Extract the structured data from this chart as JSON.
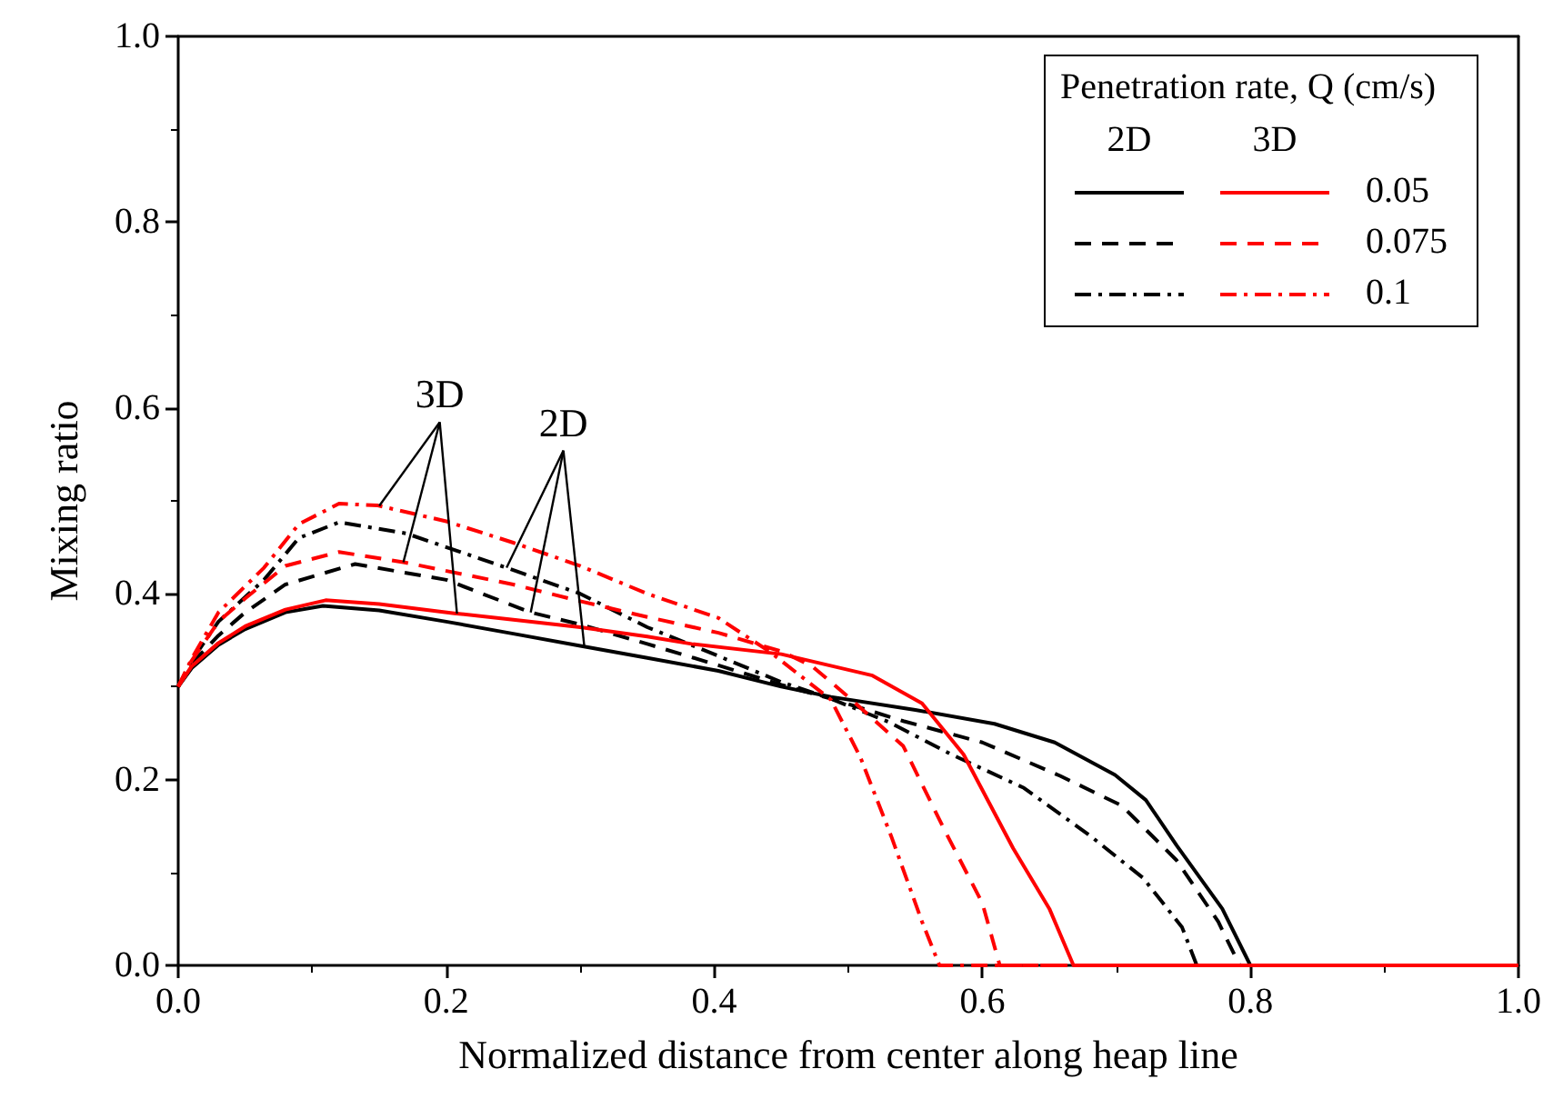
{
  "chart_data": {
    "type": "line",
    "xlabel": "Normalized distance from center along heap line",
    "ylabel": "Mixing ratio",
    "legend_title": "Penetration rate, Q (cm/s)",
    "legend": "top right",
    "grid": false,
    "marker": "none",
    "xlim": [
      0,
      1
    ],
    "ylim": [
      0,
      1
    ],
    "xticks": [
      {
        "value": 0,
        "label": "0.0"
      },
      {
        "value": 0.2,
        "label": "0.2"
      },
      {
        "value": 0.4,
        "label": "0.4"
      },
      {
        "value": 0.6,
        "label": "0.6"
      },
      {
        "value": 0.8,
        "label": "0.8"
      },
      {
        "value": 1,
        "label": "1.0"
      }
    ],
    "yticks": [
      {
        "value": 0,
        "label": "0.0"
      },
      {
        "value": 0.2,
        "label": "0.2"
      },
      {
        "value": 0.4,
        "label": "0.4"
      },
      {
        "value": 0.6,
        "label": "0.6"
      },
      {
        "value": 0.8,
        "label": "0.8"
      },
      {
        "value": 1,
        "label": "1.0"
      }
    ],
    "annotations": [
      {
        "text": "3D",
        "x": 0.168,
        "y": 0.434
      },
      {
        "text": "2D",
        "x": 0.263,
        "y": 0.38
      },
      "2D",
      "3D"
    ],
    "series": [
      {
        "color": "#000000",
        "line_style": "solid",
        "x": [
          0,
          0.01,
          0.03,
          0.05,
          0.08,
          0.108,
          0.15,
          0.2,
          0.25,
          0.3,
          0.35,
          0.403,
          0.45,
          0.487,
          0.55,
          0.609,
          0.654,
          0.699,
          0.722,
          0.745,
          0.779,
          0.8,
          1.0
        ],
        "values": [
          0.3,
          0.32,
          0.345,
          0.362,
          0.38,
          0.387,
          0.382,
          0.37,
          0.357,
          0.344,
          0.331,
          0.317,
          0.3,
          0.289,
          0.275,
          0.26,
          0.24,
          0.205,
          0.178,
          0.129,
          0.061,
          0,
          0
        ]
      },
      {
        "color": "#000000",
        "line_style": "dashed",
        "x": [
          0,
          0.01,
          0.03,
          0.05,
          0.08,
          0.132,
          0.2,
          0.263,
          0.3,
          0.35,
          0.403,
          0.45,
          0.487,
          0.541,
          0.6,
          0.658,
          0.704,
          0.745,
          0.776,
          0.792,
          1.0
        ],
        "values": [
          0.3,
          0.325,
          0.355,
          0.38,
          0.41,
          0.432,
          0.415,
          0.38,
          0.367,
          0.346,
          0.323,
          0.302,
          0.287,
          0.263,
          0.24,
          0.204,
          0.172,
          0.113,
          0.047,
          0,
          0
        ]
      },
      {
        "color": "#000000",
        "line_style": "dashdot",
        "x": [
          0,
          0.01,
          0.03,
          0.064,
          0.09,
          0.12,
          0.17,
          0.247,
          0.3,
          0.35,
          0.403,
          0.45,
          0.487,
          0.53,
          0.577,
          0.631,
          0.68,
          0.72,
          0.749,
          0.76,
          1.0
        ],
        "values": [
          0.3,
          0.328,
          0.37,
          0.415,
          0.46,
          0.477,
          0.465,
          0.427,
          0.4,
          0.364,
          0.333,
          0.305,
          0.287,
          0.262,
          0.227,
          0.191,
          0.14,
          0.094,
          0.041,
          0,
          0
        ]
      },
      {
        "name": "0.05",
        "color": "#ff0000",
        "line_style": "solid",
        "x": [
          0,
          0.01,
          0.03,
          0.05,
          0.08,
          0.11,
          0.15,
          0.206,
          0.25,
          0.3,
          0.35,
          0.383,
          0.45,
          0.518,
          0.555,
          0.586,
          0.623,
          0.65,
          0.668,
          1.0
        ],
        "values": [
          0.3,
          0.322,
          0.347,
          0.365,
          0.383,
          0.393,
          0.389,
          0.379,
          0.372,
          0.364,
          0.354,
          0.346,
          0.335,
          0.312,
          0.282,
          0.227,
          0.126,
          0.061,
          0,
          0
        ]
      },
      {
        "name": "0.075",
        "color": "#ff0000",
        "line_style": "dashed",
        "x": [
          0,
          0.01,
          0.03,
          0.05,
          0.08,
          0.12,
          0.168,
          0.25,
          0.3,
          0.35,
          0.403,
          0.45,
          0.473,
          0.5,
          0.541,
          0.572,
          0.6,
          0.613,
          1.0
        ],
        "values": [
          0.3,
          0.328,
          0.37,
          0.395,
          0.43,
          0.445,
          0.434,
          0.41,
          0.392,
          0.375,
          0.358,
          0.338,
          0.322,
          0.289,
          0.236,
          0.145,
          0.067,
          0,
          0
        ]
      },
      {
        "name": "0.1",
        "color": "#ff0000",
        "line_style": "dashdot",
        "x": [
          0,
          0.01,
          0.03,
          0.064,
          0.09,
          0.12,
          0.149,
          0.2,
          0.25,
          0.3,
          0.35,
          0.403,
          0.441,
          0.487,
          0.509,
          0.532,
          0.555,
          0.568,
          1.0
        ],
        "values": [
          0.3,
          0.33,
          0.38,
          0.428,
          0.475,
          0.497,
          0.495,
          0.478,
          0.455,
          0.43,
          0.4,
          0.374,
          0.338,
          0.286,
          0.224,
          0.139,
          0.047,
          0,
          0
        ]
      }
    ]
  }
}
